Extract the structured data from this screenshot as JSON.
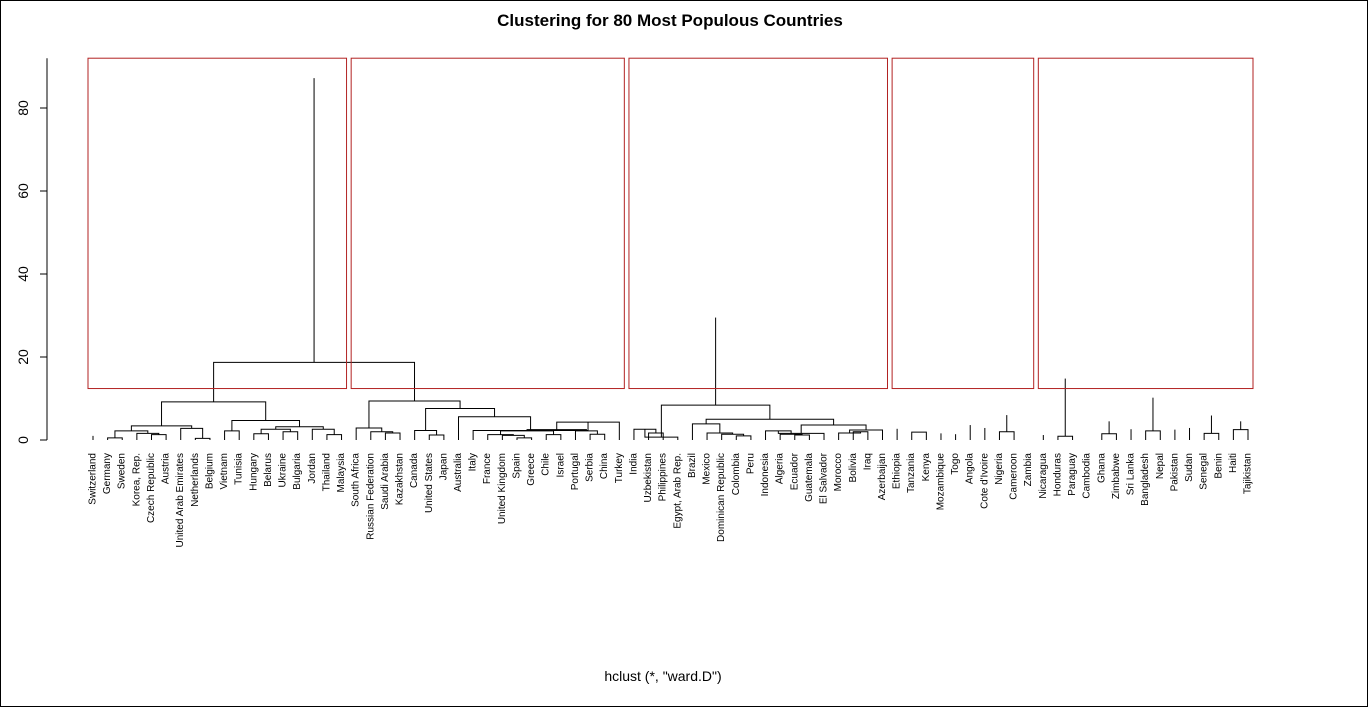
{
  "chart_data": {
    "type": "dendrogram",
    "title": "Clustering for 80 Most Populous Countries",
    "xlabel": "hclust (*, \"ward.D\")",
    "ylabel": "",
    "ylim": [
      0,
      92
    ],
    "y_ticks": [
      0,
      20,
      40,
      60,
      80
    ],
    "y_tick_labels": [
      "0",
      "20",
      "40",
      "60",
      "80"
    ],
    "leaf_labels": [
      "Switzerland",
      "Germany",
      "Sweden",
      "Korea, Rep.",
      "Czech Republic",
      "Austria",
      "United Arab Emirates",
      "Netherlands",
      "Belgium",
      "Vietnam",
      "Tunisia",
      "Hungary",
      "Belarus",
      "Ukraine",
      "Bulgaria",
      "Jordan",
      "Thailand",
      "Malaysia",
      "South Africa",
      "Russian Federation",
      "Saudi Arabia",
      "Kazakhstan",
      "Canada",
      "United States",
      "Japan",
      "Australia",
      "Italy",
      "France",
      "United Kingdom",
      "Spain",
      "Greece",
      "Chile",
      "Israel",
      "Portugal",
      "Serbia",
      "China",
      "Turkey",
      "India",
      "Uzbekistan",
      "Philippines",
      "Egypt, Arab Rep.",
      "Brazil",
      "Mexico",
      "Dominican Republic",
      "Colombia",
      "Peru",
      "Indonesia",
      "Algeria",
      "Ecuador",
      "Guatemala",
      "El Salvador",
      "Morocco",
      "Bolivia",
      "Iraq",
      "Azerbaijan",
      "Ethiopia",
      "Tanzania",
      "Kenya",
      "Mozambique",
      "Togo",
      "Angola",
      "Cote d'Ivoire",
      "Nigeria",
      "Cameroon",
      "Zambia",
      "Nicaragua",
      "Honduras",
      "Paraguay",
      "Cambodia",
      "Ghana",
      "Zimbabwe",
      "Sri Lanka",
      "Bangladesh",
      "Nepal",
      "Pakistan",
      "Sudan",
      "Senegal",
      "Benin",
      "Haiti",
      "Tajikistan"
    ],
    "merges": [
      [
        1,
        2,
        0.5
      ],
      [
        0,
        81,
        1.0
      ],
      [
        4,
        5,
        1.3
      ],
      [
        3,
        82,
        1.6
      ],
      [
        80,
        83,
        2.2
      ],
      [
        7,
        8,
        0.4
      ],
      [
        6,
        85,
        2.8
      ],
      [
        84,
        86,
        3.4
      ],
      [
        11,
        12,
        1.5
      ],
      [
        13,
        14,
        2.0
      ],
      [
        88,
        89,
        2.6
      ],
      [
        9,
        10,
        2.2
      ],
      [
        16,
        17,
        1.3
      ],
      [
        15,
        92,
        2.6
      ],
      [
        90,
        93,
        3.2
      ],
      [
        91,
        94,
        4.7
      ],
      [
        87,
        95,
        9.2
      ],
      [
        20,
        21,
        1.7
      ],
      [
        19,
        97,
        2.0
      ],
      [
        18,
        98,
        2.9
      ],
      [
        23,
        24,
        1.2
      ],
      [
        22,
        100,
        2.3
      ],
      [
        29,
        30,
        0.5
      ],
      [
        28,
        102,
        1.1
      ],
      [
        27,
        103,
        1.3
      ],
      [
        31,
        32,
        1.3
      ],
      [
        104,
        105,
        2.2
      ],
      [
        34,
        35,
        1.4
      ],
      [
        33,
        107,
        2.2
      ],
      [
        106,
        108,
        2.5
      ],
      [
        36,
        109,
        4.3
      ],
      [
        26,
        110,
        2.3
      ],
      [
        111,
        25,
        5.6
      ],
      [
        101,
        112,
        7.6
      ],
      [
        99,
        113,
        9.4
      ],
      [
        96,
        114,
        18.7
      ],
      [
        38,
        39,
        1.7
      ],
      [
        37,
        116,
        2.6
      ],
      [
        117,
        40,
        0.7
      ],
      [
        44,
        45,
        1.0
      ],
      [
        43,
        119,
        1.4
      ],
      [
        42,
        120,
        1.7
      ],
      [
        121,
        41,
        3.9
      ],
      [
        48,
        49,
        1.2
      ],
      [
        47,
        123,
        1.4
      ],
      [
        124,
        46,
        2.2
      ],
      [
        125,
        50,
        1.6
      ],
      [
        52,
        53,
        2.0
      ],
      [
        51,
        127,
        1.7
      ],
      [
        128,
        54,
        2.4
      ],
      [
        126,
        129,
        3.6
      ],
      [
        122,
        130,
        5.0
      ],
      [
        118,
        131,
        8.4
      ],
      [
        56,
        57,
        1.9
      ],
      [
        58,
        134,
        1.6
      ],
      [
        59,
        135,
        1.4
      ],
      [
        55,
        136,
        2.7
      ],
      [
        62,
        63,
        2.0
      ],
      [
        138,
        64,
        1.4
      ],
      [
        61,
        139,
        2.9
      ],
      [
        60,
        140,
        3.6
      ],
      [
        137,
        141,
        6.0
      ],
      [
        66,
        67,
        0.9
      ],
      [
        65,
        143,
        1.2
      ],
      [
        144,
        68,
        4.5
      ],
      [
        69,
        70,
        1.5
      ],
      [
        71,
        146,
        2.6
      ],
      [
        145,
        147,
        4.5
      ],
      [
        72,
        73,
        2.2
      ],
      [
        74,
        149,
        2.5
      ],
      [
        76,
        77,
        1.6
      ],
      [
        75,
        151,
        2.9
      ],
      [
        78,
        79,
        2.5
      ],
      [
        152,
        153,
        4.5
      ],
      [
        150,
        154,
        5.9
      ],
      [
        148,
        155,
        10.2
      ],
      [
        142,
        156,
        14.8
      ],
      [
        132,
        157,
        29.5
      ],
      [
        115,
        158,
        87.2
      ]
    ],
    "cut": {
      "height": 12.4,
      "clusters": [
        [
          0,
          17
        ],
        [
          18,
          36
        ],
        [
          37,
          54
        ],
        [
          55,
          64
        ],
        [
          65,
          79
        ]
      ],
      "color": "#b22222"
    },
    "line_color": "#000000",
    "grid": false
  }
}
